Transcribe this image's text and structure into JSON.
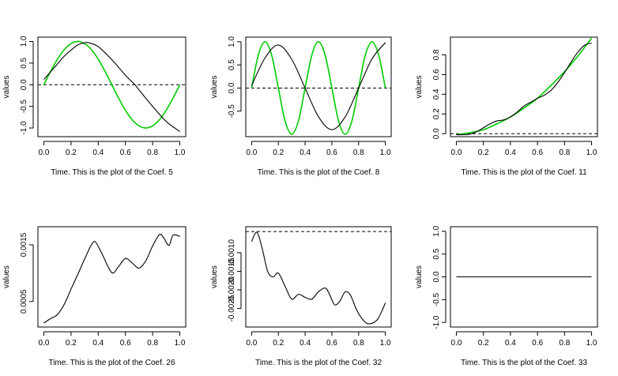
{
  "chart_data": [
    {
      "type": "line",
      "xlabel": "Time. This is the plot of the Coef. 5",
      "ylabel": "values",
      "xlim": [
        0,
        1
      ],
      "ylim": [
        -1.2,
        1.1
      ],
      "xticks": [
        0.0,
        0.2,
        0.4,
        0.6,
        0.8,
        1.0
      ],
      "xtick_labels": [
        "0.0",
        "0.2",
        "0.4",
        "0.6",
        "0.8",
        "1.0"
      ],
      "yticks": [
        -1.0,
        -0.5,
        0.0,
        0.5,
        1.0
      ],
      "ytick_labels": [
        "-1.0",
        "-0.5",
        "0.0",
        "0.5",
        "1.0"
      ],
      "hline": 0,
      "series": [
        {
          "color": "#00cc00",
          "x": [
            0,
            0.05,
            0.1,
            0.15,
            0.2,
            0.25,
            0.3,
            0.35,
            0.4,
            0.45,
            0.5,
            0.55,
            0.6,
            0.65,
            0.7,
            0.75,
            0.8,
            0.85,
            0.9,
            0.95,
            1.0
          ],
          "y": [
            0.0,
            0.31,
            0.59,
            0.81,
            0.95,
            1.0,
            0.95,
            0.81,
            0.59,
            0.31,
            0.0,
            -0.31,
            -0.59,
            -0.81,
            -0.95,
            -1.0,
            -0.95,
            -0.81,
            -0.59,
            -0.31,
            0.0
          ]
        },
        {
          "color": "#000000",
          "x": [
            0,
            0.05,
            0.1,
            0.15,
            0.2,
            0.25,
            0.3,
            0.33,
            0.4,
            0.5,
            0.6,
            0.67,
            0.7,
            0.8,
            0.9,
            1.0
          ],
          "y": [
            0.12,
            0.3,
            0.48,
            0.66,
            0.8,
            0.92,
            0.97,
            0.97,
            0.88,
            0.58,
            0.22,
            0.0,
            -0.12,
            -0.5,
            -0.85,
            -1.08
          ]
        }
      ]
    },
    {
      "type": "line",
      "xlabel": "Time. This is the plot of the Coef. 8",
      "ylabel": "values",
      "xlim": [
        0,
        1
      ],
      "ylim": [
        -1.05,
        1.1
      ],
      "xticks": [
        0.0,
        0.2,
        0.4,
        0.6,
        0.8,
        1.0
      ],
      "xtick_labels": [
        "0.0",
        "0.2",
        "0.4",
        "0.6",
        "0.8",
        "1.0"
      ],
      "yticks": [
        -0.5,
        0.0,
        0.5,
        1.0
      ],
      "ytick_labels": [
        "-0.5",
        "0.0",
        "0.5",
        "1.0"
      ],
      "hline": 0,
      "series": [
        {
          "color": "#00cc00",
          "x": [
            0,
            0.05,
            0.1,
            0.15,
            0.2,
            0.25,
            0.3,
            0.35,
            0.4,
            0.45,
            0.5,
            0.55,
            0.6,
            0.65,
            0.7,
            0.75,
            0.8,
            0.85,
            0.9,
            0.95,
            1.0
          ],
          "y": [
            0.0,
            0.71,
            1.0,
            0.71,
            0.0,
            -0.71,
            -1.0,
            -0.71,
            0.0,
            0.71,
            1.0,
            0.71,
            0.0,
            -0.71,
            -1.0,
            -0.71,
            0.0,
            0.71,
            1.0,
            0.71,
            0.0
          ]
        },
        {
          "color": "#000000",
          "x": [
            0,
            0.1,
            0.2,
            0.3,
            0.4,
            0.5,
            0.6,
            0.7,
            0.8,
            0.9,
            1.0
          ],
          "y": [
            0.05,
            0.65,
            0.93,
            0.62,
            0.0,
            -0.62,
            -0.9,
            -0.62,
            0.0,
            0.63,
            0.98
          ]
        }
      ]
    },
    {
      "type": "line",
      "xlabel": "Time. This is the plot of the Coef. 11",
      "ylabel": "values",
      "xlim": [
        0,
        1
      ],
      "ylim": [
        -0.03,
        0.98
      ],
      "xticks": [
        0.0,
        0.2,
        0.4,
        0.6,
        0.8,
        1.0
      ],
      "xtick_labels": [
        "0.0",
        "0.2",
        "0.4",
        "0.6",
        "0.8",
        "1.0"
      ],
      "yticks": [
        0.0,
        0.2,
        0.4,
        0.6,
        0.8
      ],
      "ytick_labels": [
        "0.0",
        "0.2",
        "0.4",
        "0.6",
        "0.8"
      ],
      "hline": 0,
      "series": [
        {
          "color": "#00cc00",
          "x": [
            0,
            0.1,
            0.2,
            0.3,
            0.4,
            0.5,
            0.6,
            0.7,
            0.8,
            0.9,
            1.0
          ],
          "y": [
            -0.01,
            0.01,
            0.04,
            0.1,
            0.17,
            0.26,
            0.36,
            0.49,
            0.63,
            0.79,
            0.97
          ]
        },
        {
          "color": "#000000",
          "x": [
            0,
            0.05,
            0.1,
            0.15,
            0.2,
            0.25,
            0.3,
            0.35,
            0.4,
            0.45,
            0.5,
            0.55,
            0.6,
            0.65,
            0.7,
            0.75,
            0.8,
            0.85,
            0.9,
            0.95,
            1.0
          ],
          "y": [
            -0.01,
            -0.01,
            -0.005,
            0.02,
            0.06,
            0.1,
            0.13,
            0.14,
            0.17,
            0.22,
            0.28,
            0.32,
            0.36,
            0.39,
            0.44,
            0.52,
            0.62,
            0.73,
            0.83,
            0.9,
            0.92
          ]
        }
      ]
    },
    {
      "type": "line",
      "xlabel": "Time. This is the plot of the Coef. 26",
      "ylabel": "values",
      "xlim": [
        0,
        1
      ],
      "ylim": [
        5e-05,
        0.00182
      ],
      "xticks": [
        0.0,
        0.2,
        0.4,
        0.6,
        0.8,
        1.0
      ],
      "xtick_labels": [
        "0.0",
        "0.2",
        "0.4",
        "0.6",
        "0.8",
        "1.0"
      ],
      "yticks": [
        0.0005,
        0.0015
      ],
      "ytick_labels": [
        "0.0005",
        "0.0015"
      ],
      "series": [
        {
          "color": "#000000",
          "x": [
            0,
            0.05,
            0.1,
            0.15,
            0.2,
            0.25,
            0.3,
            0.35,
            0.38,
            0.43,
            0.5,
            0.55,
            0.6,
            0.65,
            0.7,
            0.75,
            0.8,
            0.85,
            0.88,
            0.92,
            0.95,
            1.0
          ],
          "y": [
            0.00012,
            0.0002,
            0.00027,
            0.00045,
            0.00072,
            0.00098,
            0.00125,
            0.0015,
            0.00155,
            0.00133,
            0.00101,
            0.00112,
            0.00126,
            0.00118,
            0.00109,
            0.00122,
            0.00148,
            0.00168,
            0.00163,
            0.00149,
            0.00167,
            0.00165
          ]
        }
      ]
    },
    {
      "type": "line",
      "xlabel": "Time. This is the plot of the Coef. 32",
      "ylabel": "values",
      "xlim": [
        0,
        1
      ],
      "ylim": [
        -0.003,
        -0.0003
      ],
      "xticks": [
        0.0,
        0.2,
        0.4,
        0.6,
        0.8,
        1.0
      ],
      "xtick_labels": [
        "0.0",
        "0.2",
        "0.4",
        "0.6",
        "0.8",
        "1.0"
      ],
      "yticks": [
        -0.0025,
        -0.002,
        -0.0015,
        -0.001
      ],
      "ytick_labels": [
        "-0.0025",
        "-0.0020",
        "-0.0015",
        "-0.0010"
      ],
      "hline": -0.00043,
      "series": [
        {
          "color": "#000000",
          "x": [
            0,
            0.04,
            0.08,
            0.12,
            0.16,
            0.2,
            0.25,
            0.3,
            0.35,
            0.4,
            0.45,
            0.5,
            0.55,
            0.58,
            0.62,
            0.66,
            0.7,
            0.74,
            0.78,
            0.82,
            0.86,
            0.9,
            0.94,
            0.97,
            1.0
          ],
          "y": [
            -0.0007,
            -0.00045,
            -0.0009,
            -0.0015,
            -0.00165,
            -0.00155,
            -0.0019,
            -0.00225,
            -0.00212,
            -0.0022,
            -0.00225,
            -0.00205,
            -0.00195,
            -0.0021,
            -0.0024,
            -0.0023,
            -0.00205,
            -0.00215,
            -0.0025,
            -0.00275,
            -0.0029,
            -0.0029,
            -0.0028,
            -0.0026,
            -0.00235
          ]
        }
      ]
    },
    {
      "type": "line",
      "xlabel": "Time. This is the plot of the Coef. 33",
      "ylabel": "values",
      "xlim": [
        0,
        1
      ],
      "ylim": [
        -1.1,
        1.1
      ],
      "xticks": [
        0.0,
        0.2,
        0.4,
        0.6,
        0.8,
        1.0
      ],
      "xtick_labels": [
        "0.0",
        "0.2",
        "0.4",
        "0.6",
        "0.8",
        "1.0"
      ],
      "yticks": [
        -1.0,
        -0.5,
        0.0,
        0.5,
        1.0
      ],
      "ytick_labels": [
        "-1.0",
        "-0.5",
        "0.0",
        "0.5",
        "1.0"
      ],
      "series": [
        {
          "color": "#000000",
          "x": [
            0,
            1
          ],
          "y": [
            0,
            0
          ]
        }
      ]
    }
  ]
}
